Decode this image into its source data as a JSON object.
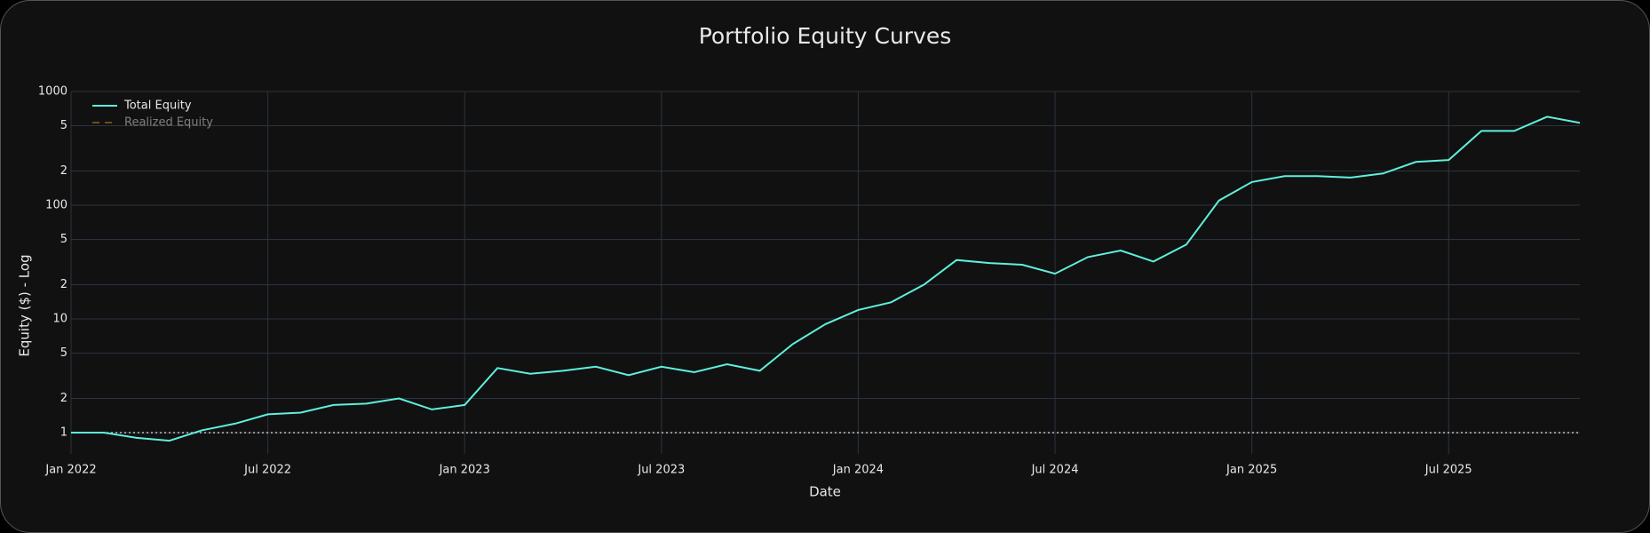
{
  "chart_data": {
    "type": "line",
    "title": "Portfolio Equity Curves",
    "x_label": "Date",
    "y_label": "Equity ($) - Log",
    "x": [
      "2022-01",
      "2022-02",
      "2022-03",
      "2022-04",
      "2022-05",
      "2022-06",
      "2022-07",
      "2022-08",
      "2022-09",
      "2022-10",
      "2022-11",
      "2022-12",
      "2023-01",
      "2023-02",
      "2023-03",
      "2023-04",
      "2023-05",
      "2023-06",
      "2023-07",
      "2023-08",
      "2023-09",
      "2023-10",
      "2023-11",
      "2023-12",
      "2024-01",
      "2024-02",
      "2024-03",
      "2024-04",
      "2024-05",
      "2024-06",
      "2024-07",
      "2024-08",
      "2024-09",
      "2024-10",
      "2024-11",
      "2024-12",
      "2025-01",
      "2025-02",
      "2025-03",
      "2025-04",
      "2025-05",
      "2025-06",
      "2025-07",
      "2025-08",
      "2025-09",
      "2025-10",
      "2025-11"
    ],
    "series": [
      {
        "name": "Total Equity",
        "color": "#5ff0dc",
        "visible": true,
        "values": [
          1.0,
          1.0,
          0.9,
          0.85,
          1.05,
          1.2,
          1.45,
          1.5,
          1.75,
          1.8,
          2.0,
          1.6,
          1.75,
          3.7,
          3.3,
          3.5,
          3.8,
          3.2,
          3.8,
          3.4,
          4.0,
          3.5,
          6.0,
          9.0,
          12,
          14,
          20,
          33,
          31,
          30,
          25,
          35,
          40,
          32,
          45,
          110,
          160,
          180,
          180,
          175,
          190,
          240,
          250,
          450,
          450,
          600,
          530
        ]
      },
      {
        "name": "Realized Equity",
        "color": "#d08a1e",
        "dash": true,
        "visible": false,
        "values": [
          null,
          null,
          null,
          null,
          null,
          null,
          null,
          null,
          null,
          null,
          null,
          null,
          null,
          null,
          null,
          null,
          null,
          null,
          null,
          null,
          null,
          null,
          null,
          null,
          null,
          null,
          null,
          null,
          null,
          null,
          null,
          null,
          null,
          null,
          null,
          null,
          null,
          null,
          null,
          null,
          null,
          null,
          null,
          null,
          null,
          null,
          null
        ]
      }
    ],
    "reference_line": 1,
    "log_y": true,
    "grid": true,
    "legend": "top-left",
    "xlim": [
      "2022-01",
      "2025-11"
    ],
    "xticks": [
      {
        "value": "2022-01",
        "label": "Jan 2022"
      },
      {
        "value": "2022-07",
        "label": "Jul 2022"
      },
      {
        "value": "2023-01",
        "label": "Jan 2023"
      },
      {
        "value": "2023-07",
        "label": "Jul 2023"
      },
      {
        "value": "2024-01",
        "label": "Jan 2024"
      },
      {
        "value": "2024-07",
        "label": "Jul 2024"
      },
      {
        "value": "2025-01",
        "label": "Jan 2025"
      },
      {
        "value": "2025-07",
        "label": "Jul 2025"
      }
    ],
    "ylim": [
      0.65,
      1000
    ],
    "yticks": [
      1,
      {
        "value": 2,
        "label": "2"
      },
      {
        "value": 5,
        "label": "5"
      },
      10,
      {
        "value": 20,
        "label": "2"
      },
      {
        "value": 50,
        "label": "5"
      },
      100,
      {
        "value": 200,
        "label": "2"
      },
      {
        "value": 500,
        "label": "5"
      },
      1000
    ]
  }
}
